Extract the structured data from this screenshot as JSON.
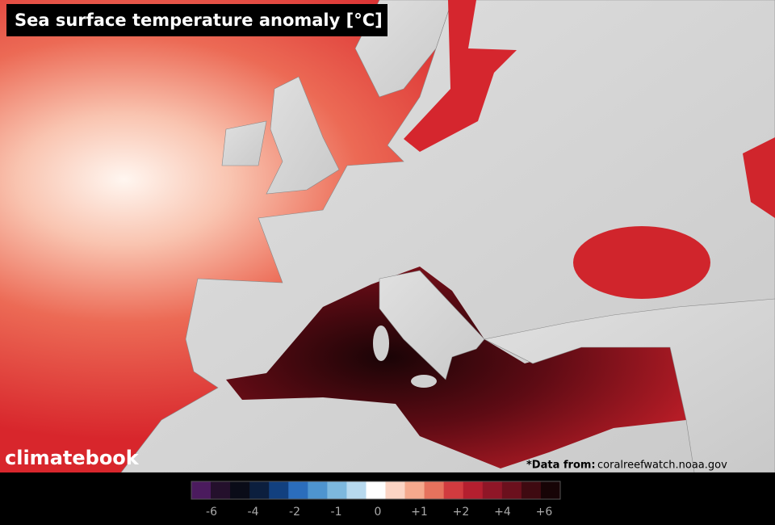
{
  "title": "Sea surface temperature anomaly [°C]",
  "logo": "climatebook",
  "source": {
    "prefix": "*Data from:",
    "url": "coralreefwatch.noaa.gov"
  },
  "colorbar": {
    "colors": [
      "#4b1b5e",
      "#24102c",
      "#0a0c18",
      "#0c1f3e",
      "#12407f",
      "#2b6dbc",
      "#4e94cf",
      "#7db8de",
      "#b7d9ee",
      "#ffffff",
      "#fbd4c4",
      "#f5a98d",
      "#e6725d",
      "#d13b3f",
      "#b41f2f",
      "#8f1627",
      "#6b101d",
      "#3f0a11",
      "#170406"
    ],
    "ticks": [
      {
        "value": -6,
        "label": "-6"
      },
      {
        "value": -4,
        "label": "-4"
      },
      {
        "value": -2,
        "label": "-2"
      },
      {
        "value": -1,
        "label": "-1"
      },
      0,
      {
        "value": 1,
        "label": "+1"
      },
      {
        "value": 2,
        "label": "+2"
      },
      {
        "value": 4,
        "label": "+4"
      },
      {
        "value": 6,
        "label": "+6"
      }
    ]
  }
}
